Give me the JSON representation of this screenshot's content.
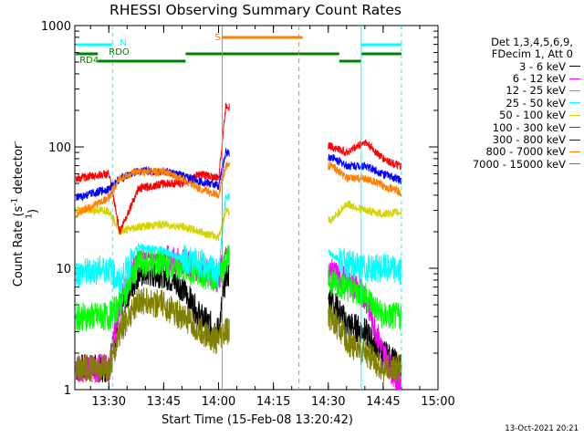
{
  "title": "RHESSI Observing Summary Count Rates",
  "xlabel": "Start Time (15-Feb-08 13:20:42)",
  "ylabel_main": "Count Rate (s",
  "ylabel_sup1": "-1",
  "ylabel_mid": " detector",
  "ylabel_sup2": "-1",
  "ylabel_end": ")",
  "timestamp": "13-Oct-2021 20:21",
  "legend_header": [
    "Det 1,3,4,5,6,9,",
    "FDecim 1, Att 0"
  ],
  "chart_data": {
    "type": "line",
    "ylog": true,
    "ylim": [
      1,
      1000
    ],
    "xlim_minutes": [
      "13:20:42",
      "15:00"
    ],
    "xticks": [
      "13:30",
      "13:45",
      "14:00",
      "14:15",
      "14:30",
      "14:45",
      "15:00"
    ],
    "yticks": [
      "1",
      "10",
      "100",
      "1000"
    ],
    "data_gap": [
      "14:03",
      "14:30"
    ],
    "series": [
      {
        "name": "3 - 6 keV",
        "color": "#000000",
        "x": [
          "13:21",
          "13:30",
          "13:33",
          "13:38",
          "13:45",
          "13:50",
          "13:55",
          "14:00",
          "14:02",
          "14:31",
          "14:35",
          "14:40",
          "14:45",
          "14:50"
        ],
        "y": [
          1.5,
          1.5,
          4.5,
          9,
          9,
          7,
          4,
          3,
          9,
          5.5,
          3.5,
          3,
          2,
          1.5
        ]
      },
      {
        "name": "6 - 12 keV",
        "color": "#ff00ff",
        "x": [
          "13:21",
          "13:30",
          "13:33",
          "13:38",
          "13:45",
          "13:50",
          "13:55",
          "14:00",
          "14:02",
          "14:31",
          "14:35",
          "14:40",
          "14:45",
          "14:50"
        ],
        "y": [
          1.5,
          1.5,
          5,
          13,
          12,
          11,
          10,
          8,
          14,
          9,
          8,
          6,
          2,
          1
        ]
      },
      {
        "name": "12 - 25 keV",
        "color": "#00ff00",
        "x": [
          "13:21",
          "13:30",
          "13:33",
          "13:38",
          "13:45",
          "13:50",
          "13:55",
          "14:00",
          "14:02",
          "14:31",
          "14:35",
          "14:40",
          "14:45",
          "14:50"
        ],
        "y": [
          4,
          4,
          5,
          11,
          11,
          10,
          9,
          8,
          12,
          8,
          7,
          6,
          4,
          4
        ]
      },
      {
        "name": "25 - 50 keV",
        "color": "#00ffff",
        "x": [
          "13:21",
          "13:30",
          "13:33",
          "13:38",
          "13:45",
          "13:50",
          "13:55",
          "14:00",
          "14:02",
          "14:31",
          "14:35",
          "14:40",
          "14:45",
          "14:50"
        ],
        "y": [
          9,
          10,
          7.5,
          15,
          14,
          12,
          11,
          9,
          40,
          13,
          11,
          10,
          10,
          9.5
        ]
      },
      {
        "name": "50 - 100 keV",
        "color": "#d4d400",
        "x": [
          "13:21",
          "13:30",
          "13:33",
          "13:38",
          "13:45",
          "13:50",
          "13:55",
          "14:00",
          "14:02",
          "14:31",
          "14:35",
          "14:40",
          "14:45",
          "14:50"
        ],
        "y": [
          30,
          30,
          20,
          22,
          23,
          22,
          20,
          18,
          30,
          25,
          34,
          30,
          28,
          29
        ]
      },
      {
        "name": "100 - 300 keV",
        "color": "#ff0000",
        "x": [
          "13:21",
          "13:30",
          "13:33",
          "13:38",
          "13:45",
          "13:50",
          "13:55",
          "14:00",
          "14:02",
          "14:31",
          "14:35",
          "14:40",
          "14:45",
          "14:50"
        ],
        "y": [
          55,
          60,
          20,
          45,
          50,
          50,
          60,
          55,
          220,
          100,
          90,
          110,
          80,
          68
        ]
      },
      {
        "name": "300 - 800 keV",
        "color": "#0000ff",
        "x": [
          "13:21",
          "13:30",
          "13:33",
          "13:38",
          "13:45",
          "13:50",
          "13:55",
          "14:00",
          "14:02",
          "14:31",
          "14:35",
          "14:40",
          "14:45",
          "14:50"
        ],
        "y": [
          38,
          45,
          55,
          63,
          63,
          58,
          52,
          48,
          90,
          82,
          70,
          70,
          60,
          53
        ]
      },
      {
        "name": "800 - 7000 keV",
        "color": "#ff8000",
        "x": [
          "13:21",
          "13:30",
          "13:33",
          "13:38",
          "13:45",
          "13:50",
          "13:55",
          "14:00",
          "14:02",
          "14:31",
          "14:35",
          "14:40",
          "14:45",
          "14:50"
        ],
        "y": [
          28,
          38,
          55,
          62,
          62,
          55,
          45,
          40,
          70,
          70,
          55,
          55,
          48,
          42
        ]
      },
      {
        "name": "7000 - 15000 keV",
        "color": "#808000",
        "x": [
          "13:21",
          "13:30",
          "13:33",
          "13:38",
          "13:45",
          "13:50",
          "13:55",
          "14:00",
          "14:02",
          "14:31",
          "14:35",
          "14:40",
          "14:45",
          "14:50"
        ],
        "y": [
          1.5,
          1.5,
          3,
          5.5,
          5,
          4,
          3,
          2.5,
          3,
          4,
          2.5,
          2,
          1.5,
          1.5
        ]
      }
    ],
    "annotations": [
      {
        "label": "N",
        "color": "#00ffff"
      },
      {
        "label": "RDO",
        "color": "#008000"
      },
      {
        "label": "RD4",
        "color": "#008000"
      },
      {
        "label": "S",
        "color": "#ff8000"
      }
    ]
  }
}
